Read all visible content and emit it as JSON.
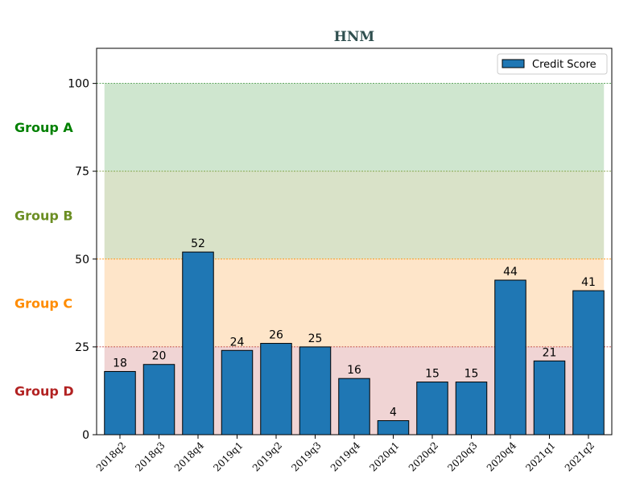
{
  "chart_data": {
    "type": "bar",
    "title": "HNM",
    "categories": [
      "2018q2",
      "2018q3",
      "2018q4",
      "2019q1",
      "2019q2",
      "2019q3",
      "2019q4",
      "2020q1",
      "2020q2",
      "2020q3",
      "2020q4",
      "2021q1",
      "2021q2"
    ],
    "series": [
      {
        "name": "Credit Score",
        "values": [
          18,
          20,
          52,
          24,
          26,
          25,
          16,
          4,
          15,
          15,
          44,
          21,
          41
        ]
      }
    ],
    "ylim": [
      0,
      110
    ],
    "yticks": [
      0,
      25,
      50,
      75,
      100
    ],
    "legend_position": "top-right",
    "bar_color": "#1f77b4",
    "bands": [
      {
        "label": "Group A",
        "from": 75,
        "to": 100,
        "fill": "#cfe6cf",
        "label_color": "#008000",
        "line_color": "#2e8b2e"
      },
      {
        "label": "Group B",
        "from": 50,
        "to": 75,
        "fill": "#d9e2c8",
        "label_color": "#6b8e23",
        "line_color": "#6b8e23"
      },
      {
        "label": "Group C",
        "from": 25,
        "to": 50,
        "fill": "#fee5c9",
        "label_color": "#ff8c00",
        "line_color": "#ff8c00"
      },
      {
        "label": "Group D",
        "from": 0,
        "to": 25,
        "fill": "#f0d4d4",
        "label_color": "#b22222",
        "line_color": "#b22222"
      }
    ]
  }
}
